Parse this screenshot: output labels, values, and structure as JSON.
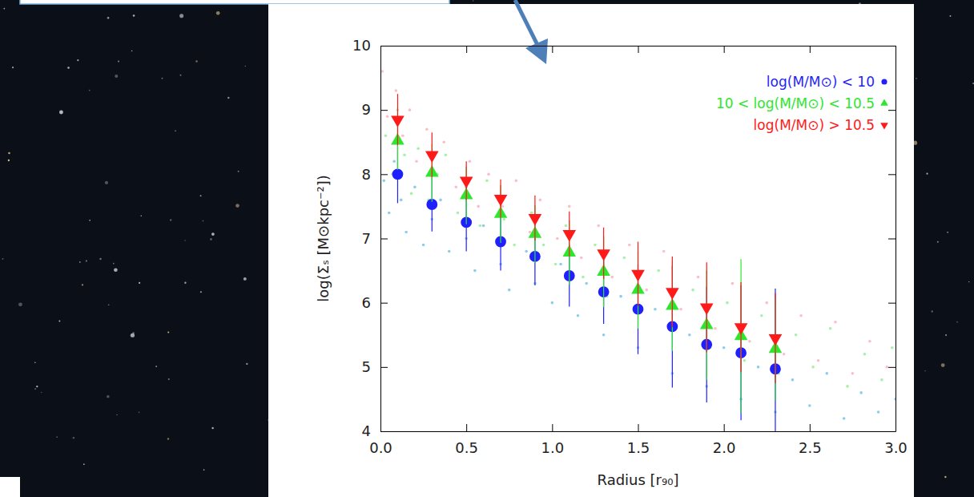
{
  "chart_data": {
    "type": "scatter",
    "x_label": "Radius [r₉₀]",
    "y_label": "log(Σₛ [M⊙kpc⁻²])",
    "xlim": [
      0,
      3
    ],
    "ylim": [
      4,
      10
    ],
    "xticks": [
      {
        "value": 0,
        "label": "0.0"
      },
      0.5,
      {
        "value": 1,
        "label": "1.0"
      },
      1.5,
      {
        "value": 2,
        "label": "2.0"
      },
      2.5,
      {
        "value": 3,
        "label": "3.0"
      }
    ],
    "yticks": [
      4,
      5,
      6,
      7,
      8,
      9,
      10
    ],
    "grid": false,
    "legend": "top-right",
    "x": [
      0.1,
      0.3,
      0.5,
      0.7,
      0.9,
      1.1,
      1.3,
      1.5,
      1.7,
      1.9,
      2.1,
      2.3
    ],
    "series": [
      {
        "name": "log(M/M⊙) < 10",
        "color": "#1f1fff",
        "marker": "circle",
        "values": [
          8.0,
          7.53,
          7.25,
          6.95,
          6.72,
          6.42,
          6.17,
          5.9,
          5.63,
          5.35,
          5.22,
          4.97
        ],
        "error": [
          0.45,
          0.42,
          0.45,
          0.45,
          0.45,
          0.48,
          0.5,
          0.7,
          0.95,
          0.9,
          1.05,
          1.25
        ],
        "points": {
          "color": "#8ecdea",
          "x": [
            0.02,
            0.05,
            0.08,
            0.12,
            0.15,
            0.2,
            0.25,
            0.3,
            0.35,
            0.4,
            0.5,
            0.55,
            0.6,
            0.7,
            0.75,
            0.85,
            0.9,
            1.0,
            1.05,
            1.15,
            1.2,
            1.3,
            1.4,
            1.5,
            1.6,
            1.7,
            1.8,
            1.9,
            2.0,
            2.1,
            2.2,
            2.3,
            2.4,
            2.5,
            2.6,
            2.7,
            2.8,
            2.9,
            3.0
          ],
          "y": [
            7.9,
            7.4,
            8.2,
            7.6,
            7.1,
            7.8,
            6.9,
            7.3,
            7.6,
            6.8,
            7.0,
            6.5,
            7.2,
            6.6,
            6.2,
            6.8,
            6.3,
            6.0,
            6.6,
            5.8,
            6.3,
            5.5,
            6.1,
            5.3,
            5.9,
            4.9,
            5.5,
            4.7,
            5.3,
            4.5,
            5.0,
            4.3,
            4.8,
            4.4,
            4.9,
            4.2,
            4.6,
            4.3,
            4.5
          ]
        }
      },
      {
        "name": "10 < log(M/M⊙) < 10.5",
        "color": "#2ee62e",
        "marker": "triangle-up",
        "values": [
          8.52,
          8.02,
          7.67,
          7.38,
          7.07,
          6.78,
          6.48,
          6.2,
          5.95,
          5.65,
          5.48,
          5.28
        ],
        "error": [
          0.45,
          0.45,
          0.45,
          0.45,
          0.45,
          0.5,
          0.55,
          0.6,
          0.7,
          0.85,
          1.2,
          0.8
        ],
        "points": {
          "color": "#a8f0a8",
          "x": [
            0.03,
            0.07,
            0.1,
            0.14,
            0.18,
            0.22,
            0.28,
            0.33,
            0.38,
            0.45,
            0.5,
            0.58,
            0.62,
            0.72,
            0.78,
            0.88,
            0.95,
            1.02,
            1.08,
            1.18,
            1.25,
            1.32,
            1.42,
            1.52,
            1.62,
            1.72,
            1.82,
            1.92,
            2.02,
            2.12,
            2.22,
            2.32,
            2.42,
            2.52,
            2.62,
            2.72,
            2.82,
            2.92,
            2.98
          ],
          "y": [
            8.6,
            8.0,
            9.0,
            8.3,
            7.7,
            8.4,
            7.6,
            8.0,
            8.3,
            7.4,
            7.8,
            7.2,
            7.9,
            7.3,
            6.9,
            7.4,
            6.9,
            6.6,
            7.2,
            6.4,
            6.9,
            6.1,
            6.7,
            5.9,
            6.5,
            5.6,
            6.2,
            5.3,
            6.0,
            5.1,
            5.8,
            4.9,
            5.5,
            5.0,
            5.6,
            4.7,
            5.2,
            4.8,
            5.3
          ]
        }
      },
      {
        "name": "log(M/M⊙) > 10.5",
        "color": "#ff1a1a",
        "marker": "triangle-down",
        "values": [
          8.85,
          8.3,
          7.9,
          7.62,
          7.32,
          7.07,
          6.77,
          6.45,
          6.17,
          5.93,
          5.62,
          5.45
        ],
        "error": [
          0.4,
          0.35,
          0.3,
          0.3,
          0.35,
          0.35,
          0.4,
          0.5,
          0.55,
          0.7,
          0.7,
          0.7
        ],
        "points": {
          "color": "#f8c0c8",
          "x": [
            0.01,
            0.04,
            0.09,
            0.13,
            0.17,
            0.21,
            0.27,
            0.32,
            0.37,
            0.44,
            0.52,
            0.57,
            0.63,
            0.71,
            0.79,
            0.87,
            0.93,
            1.03,
            1.1,
            1.17,
            1.27,
            1.35,
            1.45,
            1.55,
            1.65,
            1.75,
            1.85,
            1.95,
            2.05,
            2.15,
            2.25,
            2.35,
            2.45,
            2.55,
            2.65,
            2.75,
            2.85,
            2.95
          ],
          "y": [
            9.6,
            8.9,
            9.3,
            8.6,
            9.0,
            8.2,
            8.7,
            8.0,
            8.5,
            7.8,
            8.2,
            7.5,
            8.0,
            7.5,
            7.9,
            7.1,
            7.6,
            7.0,
            7.5,
            6.7,
            7.2,
            6.4,
            6.9,
            6.2,
            6.8,
            5.9,
            6.4,
            5.6,
            6.3,
            5.4,
            6.0,
            5.2,
            5.8,
            5.1,
            5.7,
            4.9,
            5.4,
            5.0
          ]
        }
      }
    ]
  }
}
